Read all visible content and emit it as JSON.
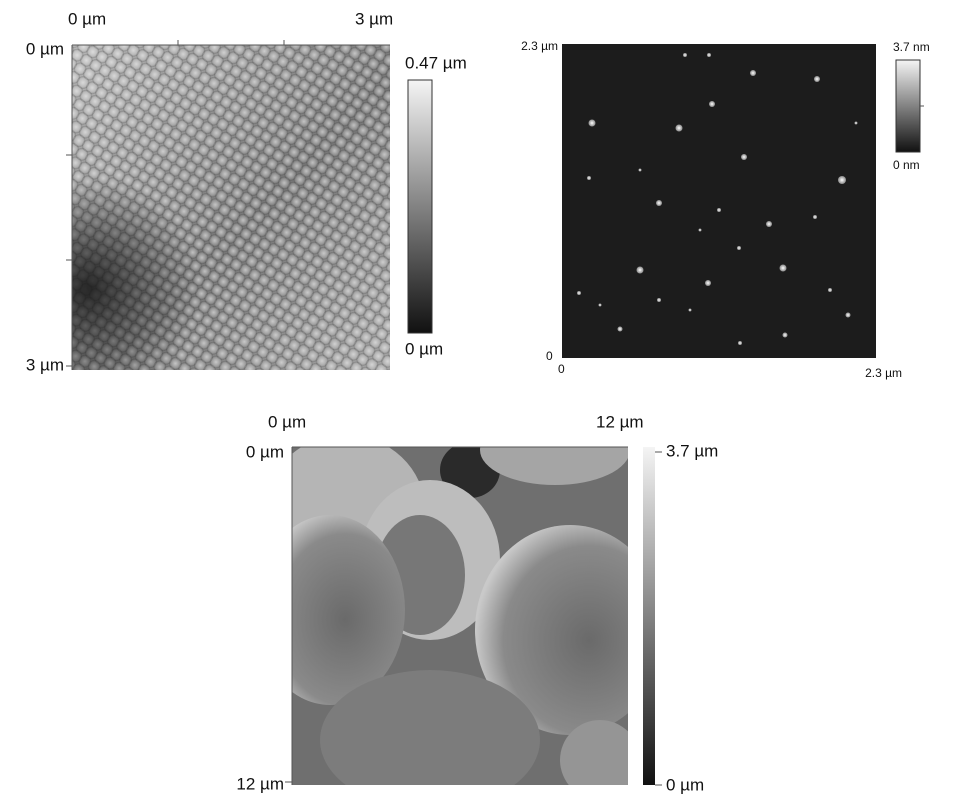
{
  "panels": [
    {
      "x_start": "0 µm",
      "x_end": "3 µm",
      "y_start": "0 µm",
      "y_end": "3 µm",
      "scale_max": "0.47 µm",
      "scale_min": "0 µm"
    },
    {
      "y_end": "2.3 µm",
      "y_start": "0",
      "x_start": "0",
      "x_end": "2.3 µm",
      "scale_max": "3.7 nm",
      "scale_min": "0 nm"
    },
    {
      "x_start": "0 µm",
      "x_end": "12 µm",
      "y_start": "0 µm",
      "y_end": "12 µm",
      "scale_max": "3.7 µm",
      "scale_min": "0 µm"
    }
  ]
}
